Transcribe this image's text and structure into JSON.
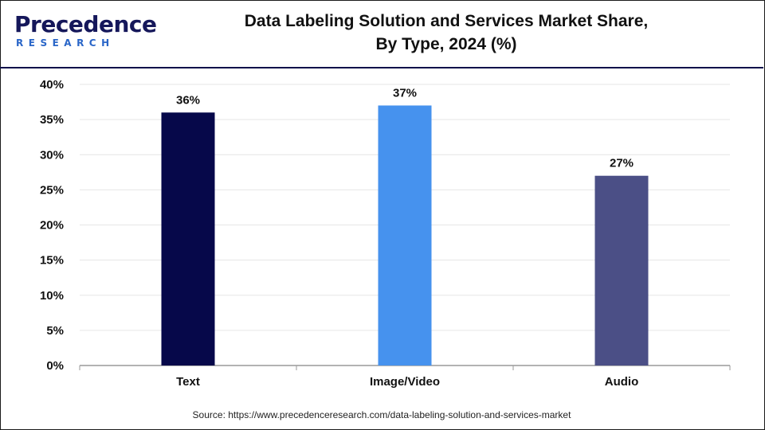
{
  "logo": {
    "word": "Precedence",
    "sub": "RESEARCH"
  },
  "source": "Source: https://www.precedenceresearch.com/data-labeling-solution-and-services-market",
  "colors": {
    "text_bar": "#06084a",
    "image_video_bar": "#4692ee",
    "audio_bar": "#4b4f86",
    "axis": "#9a9a9a",
    "grid": "#e6e6e6"
  },
  "chart_data": {
    "type": "bar",
    "title_line1": "Data Labeling Solution and Services Market Share,",
    "title_line2": "By Type, 2024 (%)",
    "categories": [
      "Text",
      "Image/Video",
      "Audio"
    ],
    "values": [
      36,
      37,
      27
    ],
    "data_labels": [
      "36%",
      "37%",
      "27%"
    ],
    "bar_colors": [
      "#06084a",
      "#4692ee",
      "#4b4f86"
    ],
    "ylim": [
      0,
      40
    ],
    "yticks": [
      0,
      5,
      10,
      15,
      20,
      25,
      30,
      35,
      40
    ],
    "ytick_labels": [
      "0%",
      "5%",
      "10%",
      "15%",
      "20%",
      "25%",
      "30%",
      "35%",
      "40%"
    ],
    "grid": true,
    "xlabel": "",
    "ylabel": ""
  }
}
